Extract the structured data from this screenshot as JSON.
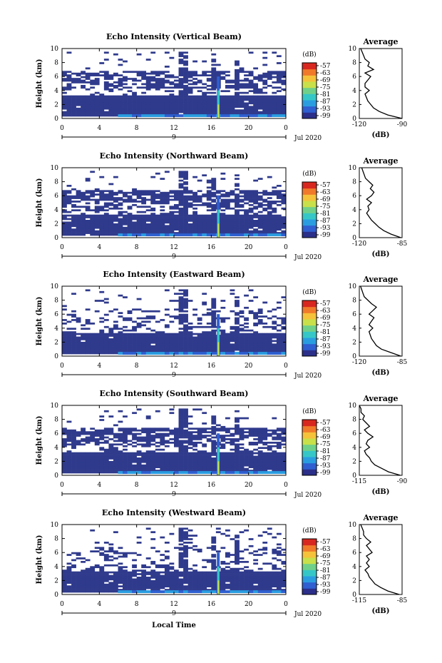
{
  "chart_data": [
    {
      "type": "heatmap",
      "title": "Echo Intensity (Vertical Beam)",
      "ylabel": "Height (km)",
      "ylim": [
        0,
        10
      ],
      "xlim": [
        0,
        24
      ],
      "x_ticks": [
        "0",
        "4",
        "8",
        "12",
        "16",
        "20",
        "0"
      ],
      "y_ticks": [
        "0",
        "2",
        "4",
        "6",
        "8",
        "10"
      ],
      "date_label": "Jul 2020",
      "day_label": "9",
      "colorbar": {
        "title": "(dB)",
        "ticks": [
          "-57",
          "-63",
          "-69",
          "-75",
          "-81",
          "-87",
          "-93",
          "-99"
        ]
      },
      "profile": {
        "title": "Average",
        "xlabel": "(dB)",
        "xlim": [
          -120,
          -90
        ],
        "x_ticks": [
          "-120",
          "-90"
        ],
        "heights": [
          0,
          0.5,
          1,
          1.5,
          2,
          2.5,
          3,
          3.5,
          4,
          4.5,
          5,
          5.5,
          6,
          6.5,
          7,
          7.5,
          8,
          8.5,
          9,
          9.5,
          10
        ],
        "values": [
          -90,
          -100,
          -106,
          -110,
          -112,
          -114,
          -115,
          -116,
          -113,
          -116,
          -116,
          -114,
          -112,
          -116,
          -110,
          -114,
          -113,
          -116,
          -117,
          -118,
          -119
        ]
      }
    },
    {
      "type": "heatmap",
      "title": "Echo Intensity (Northward Beam)",
      "ylabel": "Height (km)",
      "ylim": [
        0,
        10
      ],
      "xlim": [
        0,
        24
      ],
      "x_ticks": [
        "0",
        "4",
        "8",
        "12",
        "16",
        "20",
        "0"
      ],
      "y_ticks": [
        "0",
        "2",
        "4",
        "6",
        "8",
        "10"
      ],
      "date_label": "Jul 2020",
      "day_label": "9",
      "colorbar": {
        "title": "(dB)",
        "ticks": [
          "-57",
          "-63",
          "-69",
          "-75",
          "-81",
          "-87",
          "-93",
          "-99"
        ]
      },
      "profile": {
        "title": "Average",
        "xlabel": "(dB)",
        "xlim": [
          -120,
          -85
        ],
        "x_ticks": [
          "-120",
          "-85"
        ],
        "heights": [
          0,
          0.5,
          1,
          1.5,
          2,
          2.5,
          3,
          3.5,
          4,
          4.5,
          5,
          5.5,
          6,
          6.5,
          7,
          7.5,
          8,
          8.5,
          9,
          9.5,
          10
        ],
        "values": [
          -86,
          -94,
          -100,
          -104,
          -107,
          -110,
          -112,
          -114,
          -112,
          -113,
          -110,
          -114,
          -110,
          -108,
          -111,
          -109,
          -112,
          -115,
          -116,
          -117,
          -118
        ]
      }
    },
    {
      "type": "heatmap",
      "title": "Echo Intensity (Eastward Beam)",
      "ylabel": "Height (km)",
      "ylim": [
        0,
        10
      ],
      "xlim": [
        0,
        24
      ],
      "x_ticks": [
        "0",
        "4",
        "8",
        "12",
        "16",
        "20",
        "0"
      ],
      "y_ticks": [
        "0",
        "2",
        "4",
        "6",
        "8",
        "10"
      ],
      "date_label": "Jul 2020",
      "day_label": "9",
      "colorbar": {
        "title": "(dB)",
        "ticks": [
          "-57",
          "-63",
          "-69",
          "-75",
          "-81",
          "-87",
          "-93",
          "-99"
        ]
      },
      "profile": {
        "title": "Average",
        "xlabel": "(dB)",
        "xlim": [
          -120,
          -85
        ],
        "x_ticks": [
          "-120",
          "-85"
        ],
        "heights": [
          0,
          0.5,
          1,
          1.5,
          2,
          2.5,
          3,
          3.5,
          4,
          4.5,
          5,
          5.5,
          6,
          6.5,
          7,
          7.5,
          8,
          8.5,
          9,
          9.5,
          10
        ],
        "values": [
          -86,
          -94,
          -102,
          -106,
          -108,
          -110,
          -111,
          -112,
          -109,
          -112,
          -110,
          -108,
          -112,
          -109,
          -106,
          -110,
          -113,
          -116,
          -117,
          -118,
          -119
        ]
      }
    },
    {
      "type": "heatmap",
      "title": "Echo Intensity (Southward Beam)",
      "ylabel": "Height (km)",
      "ylim": [
        0,
        10
      ],
      "xlim": [
        0,
        24
      ],
      "x_ticks": [
        "0",
        "4",
        "8",
        "12",
        "16",
        "20",
        "0"
      ],
      "y_ticks": [
        "0",
        "2",
        "4",
        "6",
        "8",
        "10"
      ],
      "date_label": "Jul 2020",
      "day_label": "9",
      "colorbar": {
        "title": "(dB)",
        "ticks": [
          "-57",
          "-63",
          "-69",
          "-75",
          "-81",
          "-87",
          "-93",
          "-99"
        ]
      },
      "profile": {
        "title": "Average",
        "xlabel": "(dB)",
        "xlim": [
          -115,
          -90
        ],
        "x_ticks": [
          "-115",
          "-90"
        ],
        "heights": [
          0,
          0.5,
          1,
          1.5,
          2,
          2.5,
          3,
          3.5,
          4,
          4.5,
          5,
          5.5,
          6,
          6.5,
          7,
          7.5,
          8,
          8.5,
          9,
          9.5,
          10
        ],
        "values": [
          -91,
          -98,
          -102,
          -106,
          -108,
          -109,
          -111,
          -112,
          -109,
          -111,
          -110,
          -107,
          -110,
          -112,
          -109,
          -111,
          -113,
          -112,
          -114,
          -114,
          -115
        ]
      }
    },
    {
      "type": "heatmap",
      "title": "Echo Intensity (Westward Beam)",
      "ylabel": "Height (km)",
      "xlabel": "Local Time",
      "ylim": [
        0,
        10
      ],
      "xlim": [
        0,
        24
      ],
      "x_ticks": [
        "0",
        "4",
        "8",
        "12",
        "16",
        "20",
        "0"
      ],
      "y_ticks": [
        "0",
        "2",
        "4",
        "6",
        "8",
        "10"
      ],
      "date_label": "Jul 2020",
      "day_label": "9",
      "colorbar": {
        "title": "(dB)",
        "ticks": [
          "-57",
          "-63",
          "-69",
          "-75",
          "-81",
          "-87",
          "-93",
          "-99"
        ]
      },
      "profile": {
        "title": "Average",
        "xlabel": "(dB)",
        "xlim": [
          -115,
          -85
        ],
        "x_ticks": [
          "-115",
          "-85"
        ],
        "heights": [
          0,
          0.5,
          1,
          1.5,
          2,
          2.5,
          3,
          3.5,
          4,
          4.5,
          5,
          5.5,
          6,
          6.5,
          7,
          7.5,
          8,
          8.5,
          9,
          9.5,
          10
        ],
        "values": [
          -87,
          -95,
          -100,
          -104,
          -106,
          -108,
          -109,
          -111,
          -108,
          -110,
          -108,
          -110,
          -106,
          -108,
          -110,
          -107,
          -110,
          -112,
          -112,
          -113,
          -114
        ]
      }
    }
  ],
  "colors": {
    "background_echo": "#2f3a8c",
    "colormap": [
      "#2b2f8a",
      "#2f5fd0",
      "#2a9de0",
      "#35c7c7",
      "#6fd08a",
      "#c8e04a",
      "#f5c23a",
      "#f07a2a",
      "#d8271f"
    ]
  }
}
